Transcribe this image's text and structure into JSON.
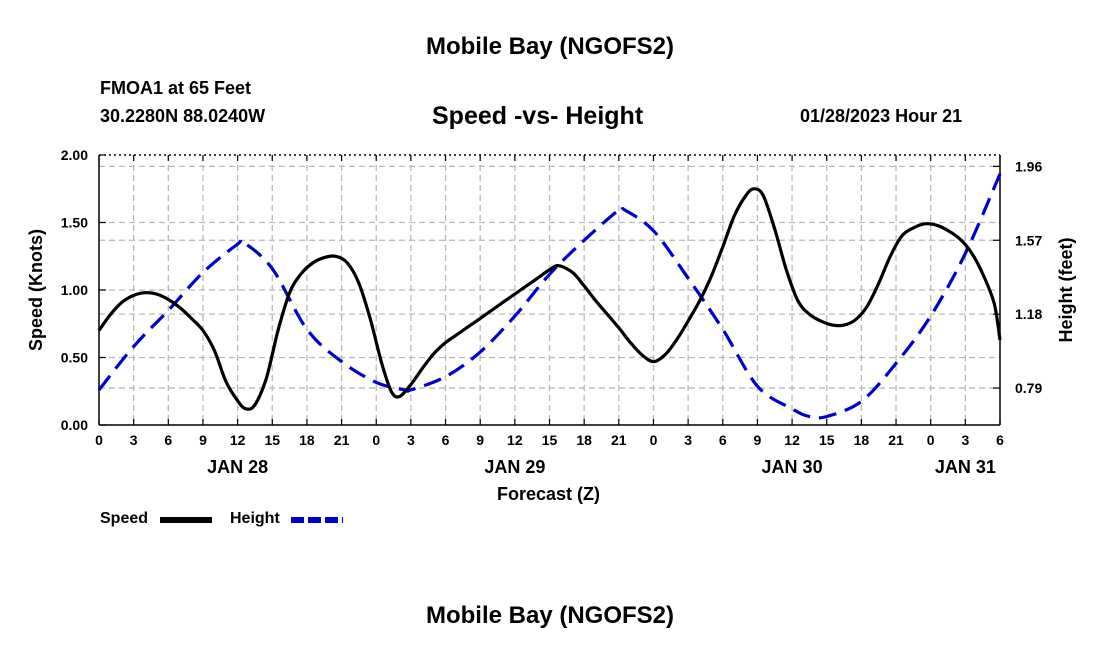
{
  "header": {
    "title": "Mobile Bay (NGOFS2)",
    "station": "FMOA1 at 65 Feet",
    "coords": "30.2280N  88.0240W",
    "subtitle": "Speed -vs- Height",
    "datetime": "01/28/2023 Hour 21",
    "bottom_title": "Mobile Bay (NGOFS2)"
  },
  "legend": {
    "speed_label": "Speed",
    "height_label": "Height",
    "speed_color": "#000000",
    "height_color": "#0000cc"
  },
  "chart_data": {
    "type": "line",
    "title": "Speed -vs- Height",
    "xlabel": "Forecast (Z)",
    "ylabel": "Speed (Knots)",
    "y2label": "Height (feet)",
    "ylim": [
      0,
      2
    ],
    "y2lim": [
      0.595,
      2.02
    ],
    "x_hours_lim": [
      0,
      78
    ],
    "xticks": [
      {
        "h": 0,
        "label": "0"
      },
      {
        "h": 3,
        "label": "3"
      },
      {
        "h": 6,
        "label": "6"
      },
      {
        "h": 9,
        "label": "9"
      },
      {
        "h": 12,
        "label": "12"
      },
      {
        "h": 15,
        "label": "15"
      },
      {
        "h": 18,
        "label": "18"
      },
      {
        "h": 21,
        "label": "21"
      },
      {
        "h": 24,
        "label": "0"
      },
      {
        "h": 27,
        "label": "3"
      },
      {
        "h": 30,
        "label": "6"
      },
      {
        "h": 33,
        "label": "9"
      },
      {
        "h": 36,
        "label": "12"
      },
      {
        "h": 39,
        "label": "15"
      },
      {
        "h": 42,
        "label": "18"
      },
      {
        "h": 45,
        "label": "21"
      },
      {
        "h": 48,
        "label": "0"
      },
      {
        "h": 51,
        "label": "3"
      },
      {
        "h": 54,
        "label": "6"
      },
      {
        "h": 57,
        "label": "9"
      },
      {
        "h": 60,
        "label": "12"
      },
      {
        "h": 63,
        "label": "15"
      },
      {
        "h": 66,
        "label": "18"
      },
      {
        "h": 69,
        "label": "21"
      },
      {
        "h": 72,
        "label": "0"
      },
      {
        "h": 75,
        "label": "3"
      },
      {
        "h": 78,
        "label": "6"
      }
    ],
    "date_labels": [
      {
        "h": 12,
        "label": "JAN 28"
      },
      {
        "h": 36,
        "label": "JAN 29"
      },
      {
        "h": 60,
        "label": "JAN 30"
      },
      {
        "h": 75,
        "label": "JAN 31"
      }
    ],
    "yticks": [
      {
        "v": 0.0,
        "label": "0.00"
      },
      {
        "v": 0.5,
        "label": "0.50"
      },
      {
        "v": 1.0,
        "label": "1.00"
      },
      {
        "v": 1.5,
        "label": "1.50"
      },
      {
        "v": 2.0,
        "label": "2.00"
      }
    ],
    "y2ticks": [
      {
        "v": 0.79,
        "label": "0.79"
      },
      {
        "v": 1.18,
        "label": "1.18"
      },
      {
        "v": 1.57,
        "label": "1.57"
      },
      {
        "v": 1.96,
        "label": "1.96"
      }
    ],
    "series": [
      {
        "name": "Speed",
        "axis": "left",
        "color": "#000000",
        "dashed": false,
        "points": [
          [
            0,
            0.7
          ],
          [
            1,
            0.82
          ],
          [
            2,
            0.91
          ],
          [
            3,
            0.96
          ],
          [
            4,
            0.98
          ],
          [
            5,
            0.97
          ],
          [
            6,
            0.93
          ],
          [
            7,
            0.87
          ],
          [
            8,
            0.79
          ],
          [
            9,
            0.7
          ],
          [
            10,
            0.55
          ],
          [
            11,
            0.32
          ],
          [
            12,
            0.18
          ],
          [
            12.7,
            0.12
          ],
          [
            13.5,
            0.15
          ],
          [
            14.5,
            0.35
          ],
          [
            15.5,
            0.7
          ],
          [
            16.5,
            0.98
          ],
          [
            17.5,
            1.12
          ],
          [
            18.5,
            1.2
          ],
          [
            19.5,
            1.24
          ],
          [
            20.5,
            1.25
          ],
          [
            21.5,
            1.2
          ],
          [
            22.5,
            1.05
          ],
          [
            23.5,
            0.78
          ],
          [
            24.5,
            0.45
          ],
          [
            25.3,
            0.25
          ],
          [
            26,
            0.21
          ],
          [
            27,
            0.3
          ],
          [
            28,
            0.42
          ],
          [
            29,
            0.53
          ],
          [
            30,
            0.61
          ],
          [
            31,
            0.67
          ],
          [
            32,
            0.73
          ],
          [
            33,
            0.79
          ],
          [
            34,
            0.85
          ],
          [
            35,
            0.91
          ],
          [
            36,
            0.97
          ],
          [
            37,
            1.03
          ],
          [
            38,
            1.09
          ],
          [
            39,
            1.15
          ],
          [
            39.8,
            1.18
          ],
          [
            41,
            1.13
          ],
          [
            42,
            1.03
          ],
          [
            43,
            0.92
          ],
          [
            44,
            0.82
          ],
          [
            45,
            0.72
          ],
          [
            46,
            0.61
          ],
          [
            47,
            0.52
          ],
          [
            48,
            0.47
          ],
          [
            49,
            0.52
          ],
          [
            50,
            0.63
          ],
          [
            51,
            0.77
          ],
          [
            52,
            0.92
          ],
          [
            53,
            1.1
          ],
          [
            54,
            1.32
          ],
          [
            55,
            1.55
          ],
          [
            56,
            1.7
          ],
          [
            56.7,
            1.75
          ],
          [
            57.5,
            1.7
          ],
          [
            58.5,
            1.45
          ],
          [
            59.5,
            1.15
          ],
          [
            60.5,
            0.92
          ],
          [
            61.5,
            0.82
          ],
          [
            62.5,
            0.77
          ],
          [
            63.5,
            0.74
          ],
          [
            64.5,
            0.74
          ],
          [
            65.5,
            0.78
          ],
          [
            66.5,
            0.88
          ],
          [
            67.5,
            1.05
          ],
          [
            68.5,
            1.25
          ],
          [
            69.5,
            1.4
          ],
          [
            70.5,
            1.46
          ],
          [
            71.5,
            1.49
          ],
          [
            72.5,
            1.48
          ],
          [
            73.5,
            1.44
          ],
          [
            74.5,
            1.38
          ],
          [
            75.5,
            1.28
          ],
          [
            76.5,
            1.12
          ],
          [
            77.5,
            0.9
          ],
          [
            78,
            0.63
          ]
        ]
      },
      {
        "name": "Height",
        "axis": "right",
        "color": "#0000cc",
        "dashed": true,
        "points": [
          [
            0,
            0.78
          ],
          [
            3,
            1.01
          ],
          [
            6,
            1.2
          ],
          [
            9,
            1.4
          ],
          [
            12,
            1.55
          ],
          [
            12.5,
            1.56
          ],
          [
            15,
            1.42
          ],
          [
            18,
            1.1
          ],
          [
            21,
            0.93
          ],
          [
            24,
            0.82
          ],
          [
            26.5,
            0.78
          ],
          [
            27,
            0.78
          ],
          [
            30,
            0.85
          ],
          [
            33,
            0.98
          ],
          [
            36,
            1.17
          ],
          [
            39,
            1.39
          ],
          [
            42,
            1.57
          ],
          [
            45,
            1.73
          ],
          [
            45.5,
            1.73
          ],
          [
            48,
            1.62
          ],
          [
            51,
            1.37
          ],
          [
            54,
            1.1
          ],
          [
            57,
            0.8
          ],
          [
            60,
            0.68
          ],
          [
            61.5,
            0.64
          ],
          [
            63,
            0.64
          ],
          [
            66,
            0.72
          ],
          [
            69,
            0.92
          ],
          [
            72,
            1.17
          ],
          [
            75,
            1.5
          ],
          [
            78,
            1.92
          ]
        ]
      }
    ]
  }
}
